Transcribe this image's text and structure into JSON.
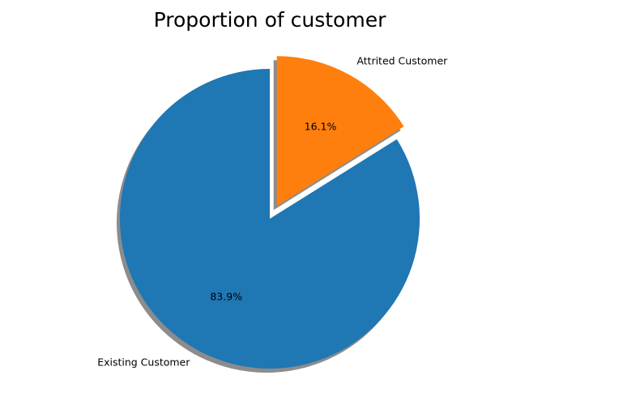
{
  "chart_data": {
    "type": "pie",
    "title": "Proportion of customer",
    "categories": [
      "Existing Customer",
      "Attrited Customer"
    ],
    "values": [
      83.9,
      16.1
    ],
    "value_labels": [
      "83.9%",
      "16.1%"
    ],
    "colors": [
      "#1f77b4",
      "#ff7f0e"
    ],
    "exploded": [
      false,
      true
    ],
    "shadow": true,
    "start_angle_deg": 90,
    "direction": "counterclockwise"
  }
}
